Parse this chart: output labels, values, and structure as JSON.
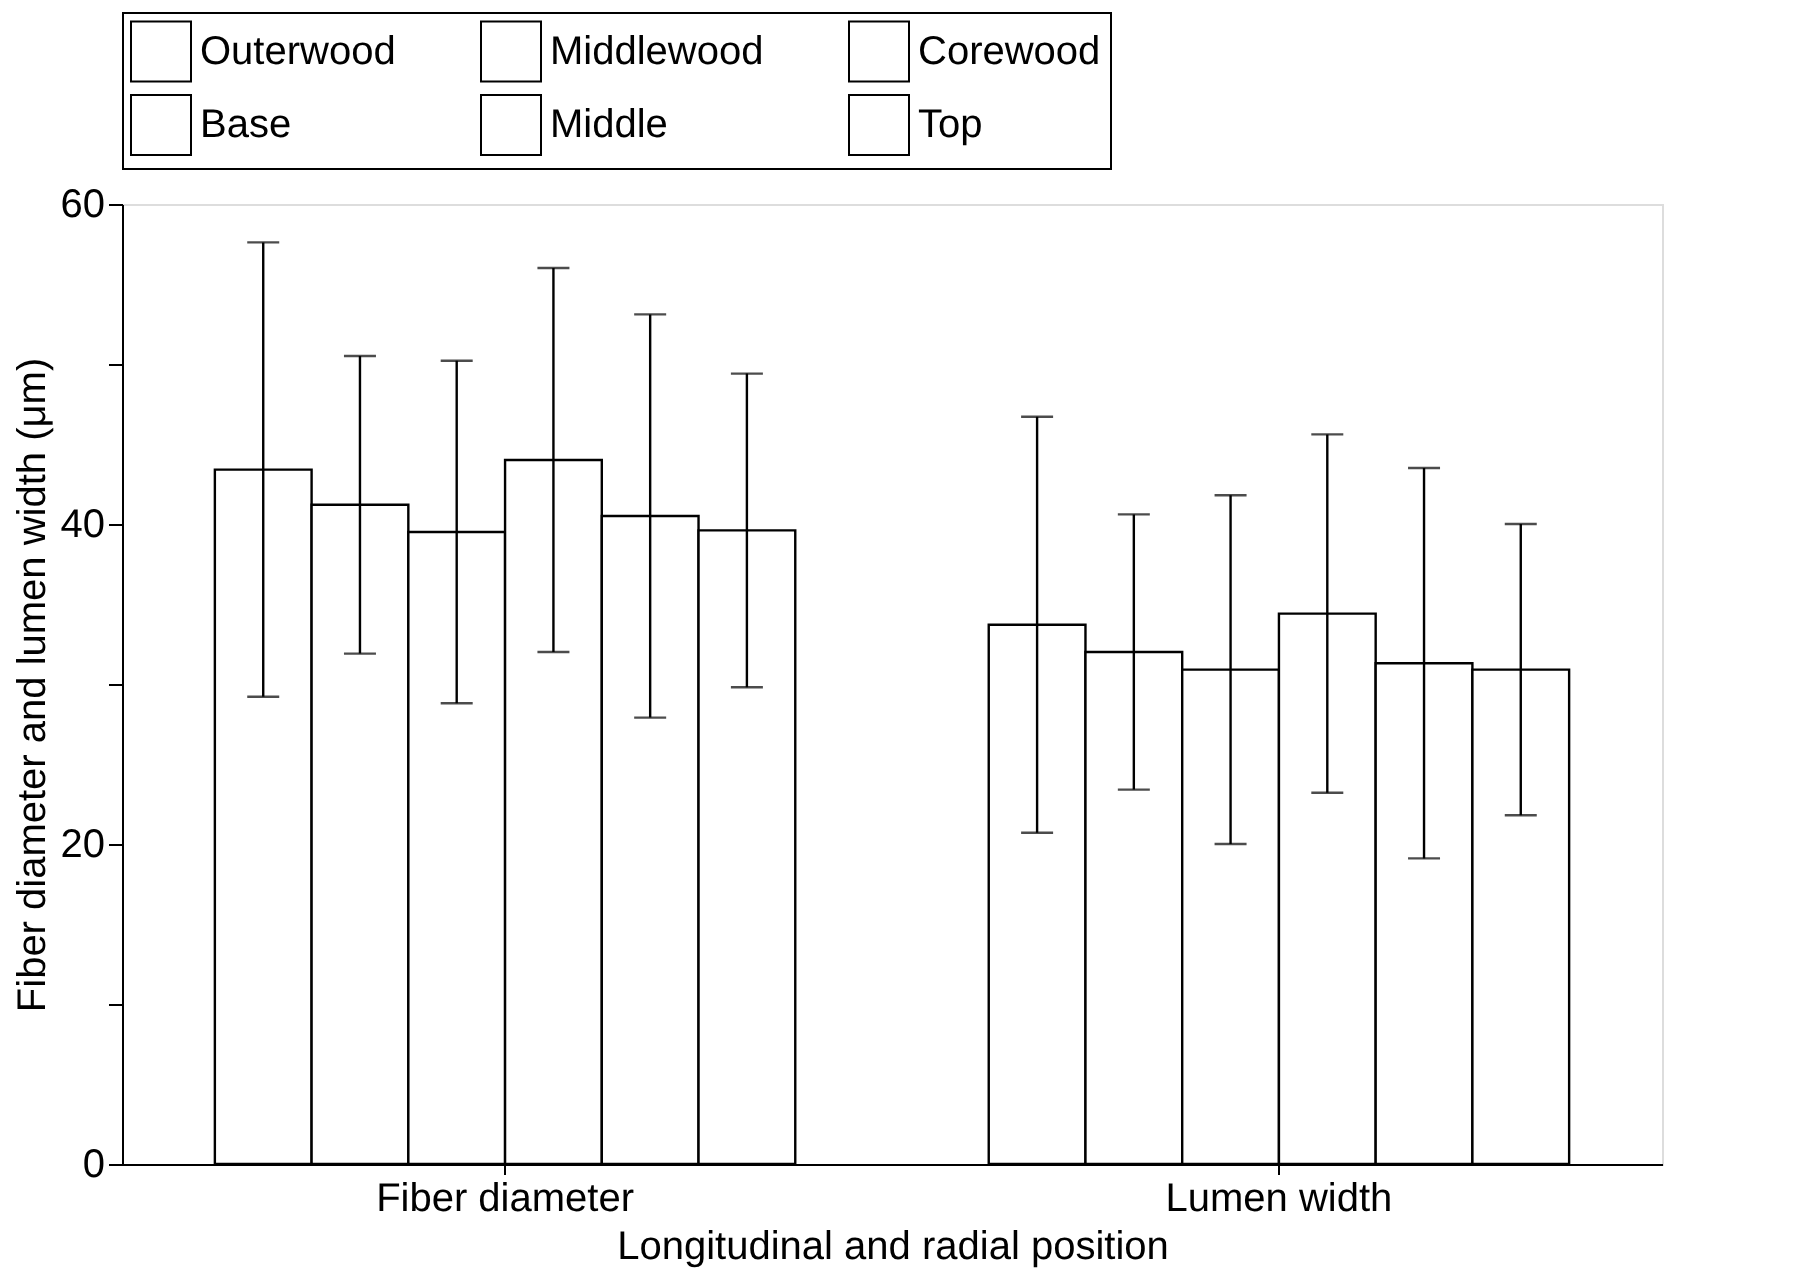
{
  "chart_data": {
    "type": "bar",
    "xlabel": "Longitudinal and radial position",
    "ylabel": "Fiber diameter and lumen width (μm)",
    "categories": [
      "Fiber diameter",
      "Lumen width"
    ],
    "series": [
      {
        "name": "Outerwood",
        "color": "#ffffff",
        "values": [
          43.4,
          33.7
        ],
        "errors": [
          14.2,
          13.0
        ]
      },
      {
        "name": "Middlewood",
        "color": "#ffffff",
        "values": [
          41.2,
          32.0
        ],
        "errors": [
          9.3,
          8.6
        ]
      },
      {
        "name": "Corewood",
        "color": "#ffffff",
        "values": [
          39.5,
          30.9
        ],
        "errors": [
          10.7,
          10.9
        ]
      },
      {
        "name": "Base",
        "color": "#ffffff",
        "values": [
          44.0,
          34.4
        ],
        "errors": [
          12.0,
          11.2
        ]
      },
      {
        "name": "Middle",
        "color": "#ffffff",
        "values": [
          40.5,
          31.3
        ],
        "errors": [
          12.6,
          12.2
        ]
      },
      {
        "name": "Top",
        "color": "#ffffff",
        "values": [
          39.6,
          30.9
        ],
        "errors": [
          9.8,
          9.1
        ]
      }
    ],
    "ylim": [
      0,
      60
    ],
    "yticks": [
      0,
      {
        "value": 10,
        "label": null
      },
      20,
      {
        "value": 30,
        "label": null
      },
      40,
      {
        "value": 50,
        "label": null
      },
      60
    ],
    "grid": false,
    "legend": "top"
  }
}
